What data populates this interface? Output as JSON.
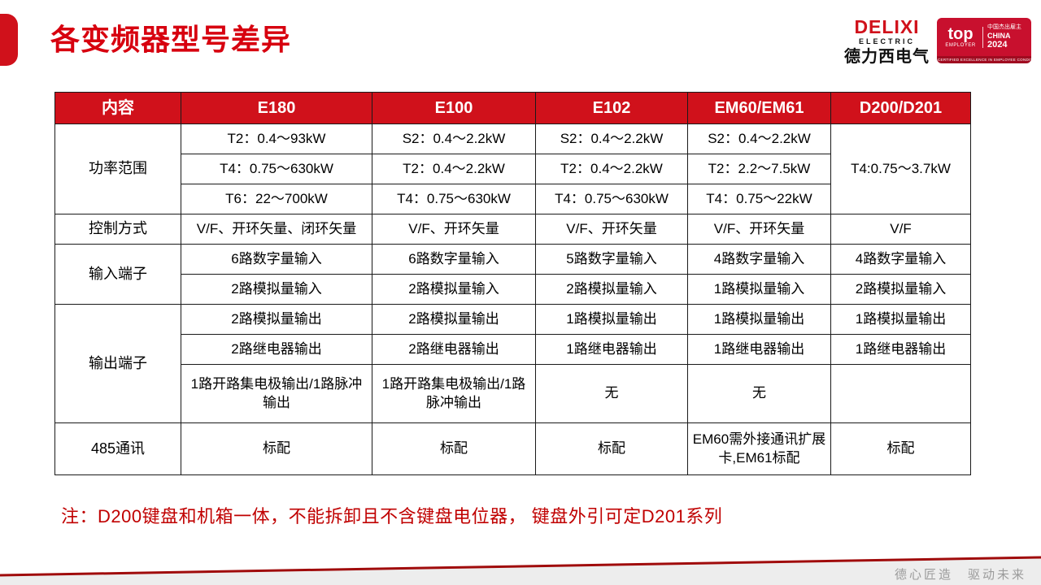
{
  "page": {
    "title": "各变频器型号差异"
  },
  "logo": {
    "brand": "DELIXI",
    "brand_sub": "ELECTRIC",
    "brand_cn": "德力西电气",
    "badge_top": "top",
    "badge_employer": "EMPLOYER",
    "badge_cn": "中国杰出雇主",
    "badge_country": "CHINA",
    "badge_year": "2024",
    "badge_footer": "CERTIFIED EXCELLENCE IN EMPLOYEE CONDITIONS"
  },
  "table": {
    "headers": [
      "内容",
      "E180",
      "E100",
      "E102",
      "EM60/EM61",
      "D200/D201"
    ],
    "rows": [
      [
        {
          "t": "功率范围",
          "rs": 3,
          "head": true
        },
        {
          "t": "T2：0.4～93kW"
        },
        {
          "t": "S2：0.4～2.2kW"
        },
        {
          "t": "S2：0.4～2.2kW"
        },
        {
          "t": "S2：0.4～2.2kW"
        },
        {
          "t": "T4:0.75～3.7kW",
          "rs": 3
        }
      ],
      [
        {
          "t": "T4：0.75～630kW"
        },
        {
          "t": "T2：0.4～2.2kW"
        },
        {
          "t": "T2：0.4～2.2kW"
        },
        {
          "t": "T2：2.2～7.5kW"
        }
      ],
      [
        {
          "t": "T6：22～700kW"
        },
        {
          "t": "T4：0.75～630kW"
        },
        {
          "t": "T4：0.75～630kW"
        },
        {
          "t": "T4：0.75～22kW"
        }
      ],
      [
        {
          "t": "控制方式",
          "head": true
        },
        {
          "t": "V/F、开环矢量、闭环矢量"
        },
        {
          "t": "V/F、开环矢量"
        },
        {
          "t": "V/F、开环矢量"
        },
        {
          "t": "V/F、开环矢量"
        },
        {
          "t": "V/F"
        }
      ],
      [
        {
          "t": "输入端子",
          "rs": 2,
          "head": true
        },
        {
          "t": "6路数字量输入"
        },
        {
          "t": "6路数字量输入"
        },
        {
          "t": "5路数字量输入"
        },
        {
          "t": "4路数字量输入"
        },
        {
          "t": "4路数字量输入"
        }
      ],
      [
        {
          "t": "2路模拟量输入"
        },
        {
          "t": "2路模拟量输入"
        },
        {
          "t": "2路模拟量输入"
        },
        {
          "t": "1路模拟量输入"
        },
        {
          "t": "2路模拟量输入"
        }
      ],
      [
        {
          "t": "输出端子",
          "rs": 3,
          "head": true
        },
        {
          "t": "2路模拟量输出"
        },
        {
          "t": "2路模拟量输出"
        },
        {
          "t": "1路模拟量输出"
        },
        {
          "t": "1路模拟量输出"
        },
        {
          "t": "1路模拟量输出"
        }
      ],
      [
        {
          "t": "2路继电器输出"
        },
        {
          "t": "2路继电器输出"
        },
        {
          "t": "1路继电器输出"
        },
        {
          "t": "1路继电器输出"
        },
        {
          "t": "1路继电器输出"
        }
      ],
      [
        {
          "t": "1路开路集电极输出/1路脉冲输出"
        },
        {
          "t": "1路开路集电极输出/1路脉冲输出"
        },
        {
          "t": "无"
        },
        {
          "t": "无"
        },
        {
          "t": ""
        }
      ],
      [
        {
          "t": "485通讯",
          "head": true
        },
        {
          "t": "标配"
        },
        {
          "t": "标配"
        },
        {
          "t": "标配"
        },
        {
          "t": "EM60需外接通讯扩展卡,EM61标配"
        },
        {
          "t": "标配"
        }
      ]
    ]
  },
  "note": "注：D200键盘和机箱一体，不能拆卸且不含键盘电位器， 键盘外引可定D201系列",
  "footer": {
    "slogan": "德心匠造　驱动未来"
  },
  "colors": {
    "accent_red": "#d0111b",
    "title_red": "#d7000f",
    "note_red": "#c00000",
    "badge_red": "#c8102e",
    "footer_line_red": "#a00b0b",
    "footer_band_gray": "#ededed"
  }
}
